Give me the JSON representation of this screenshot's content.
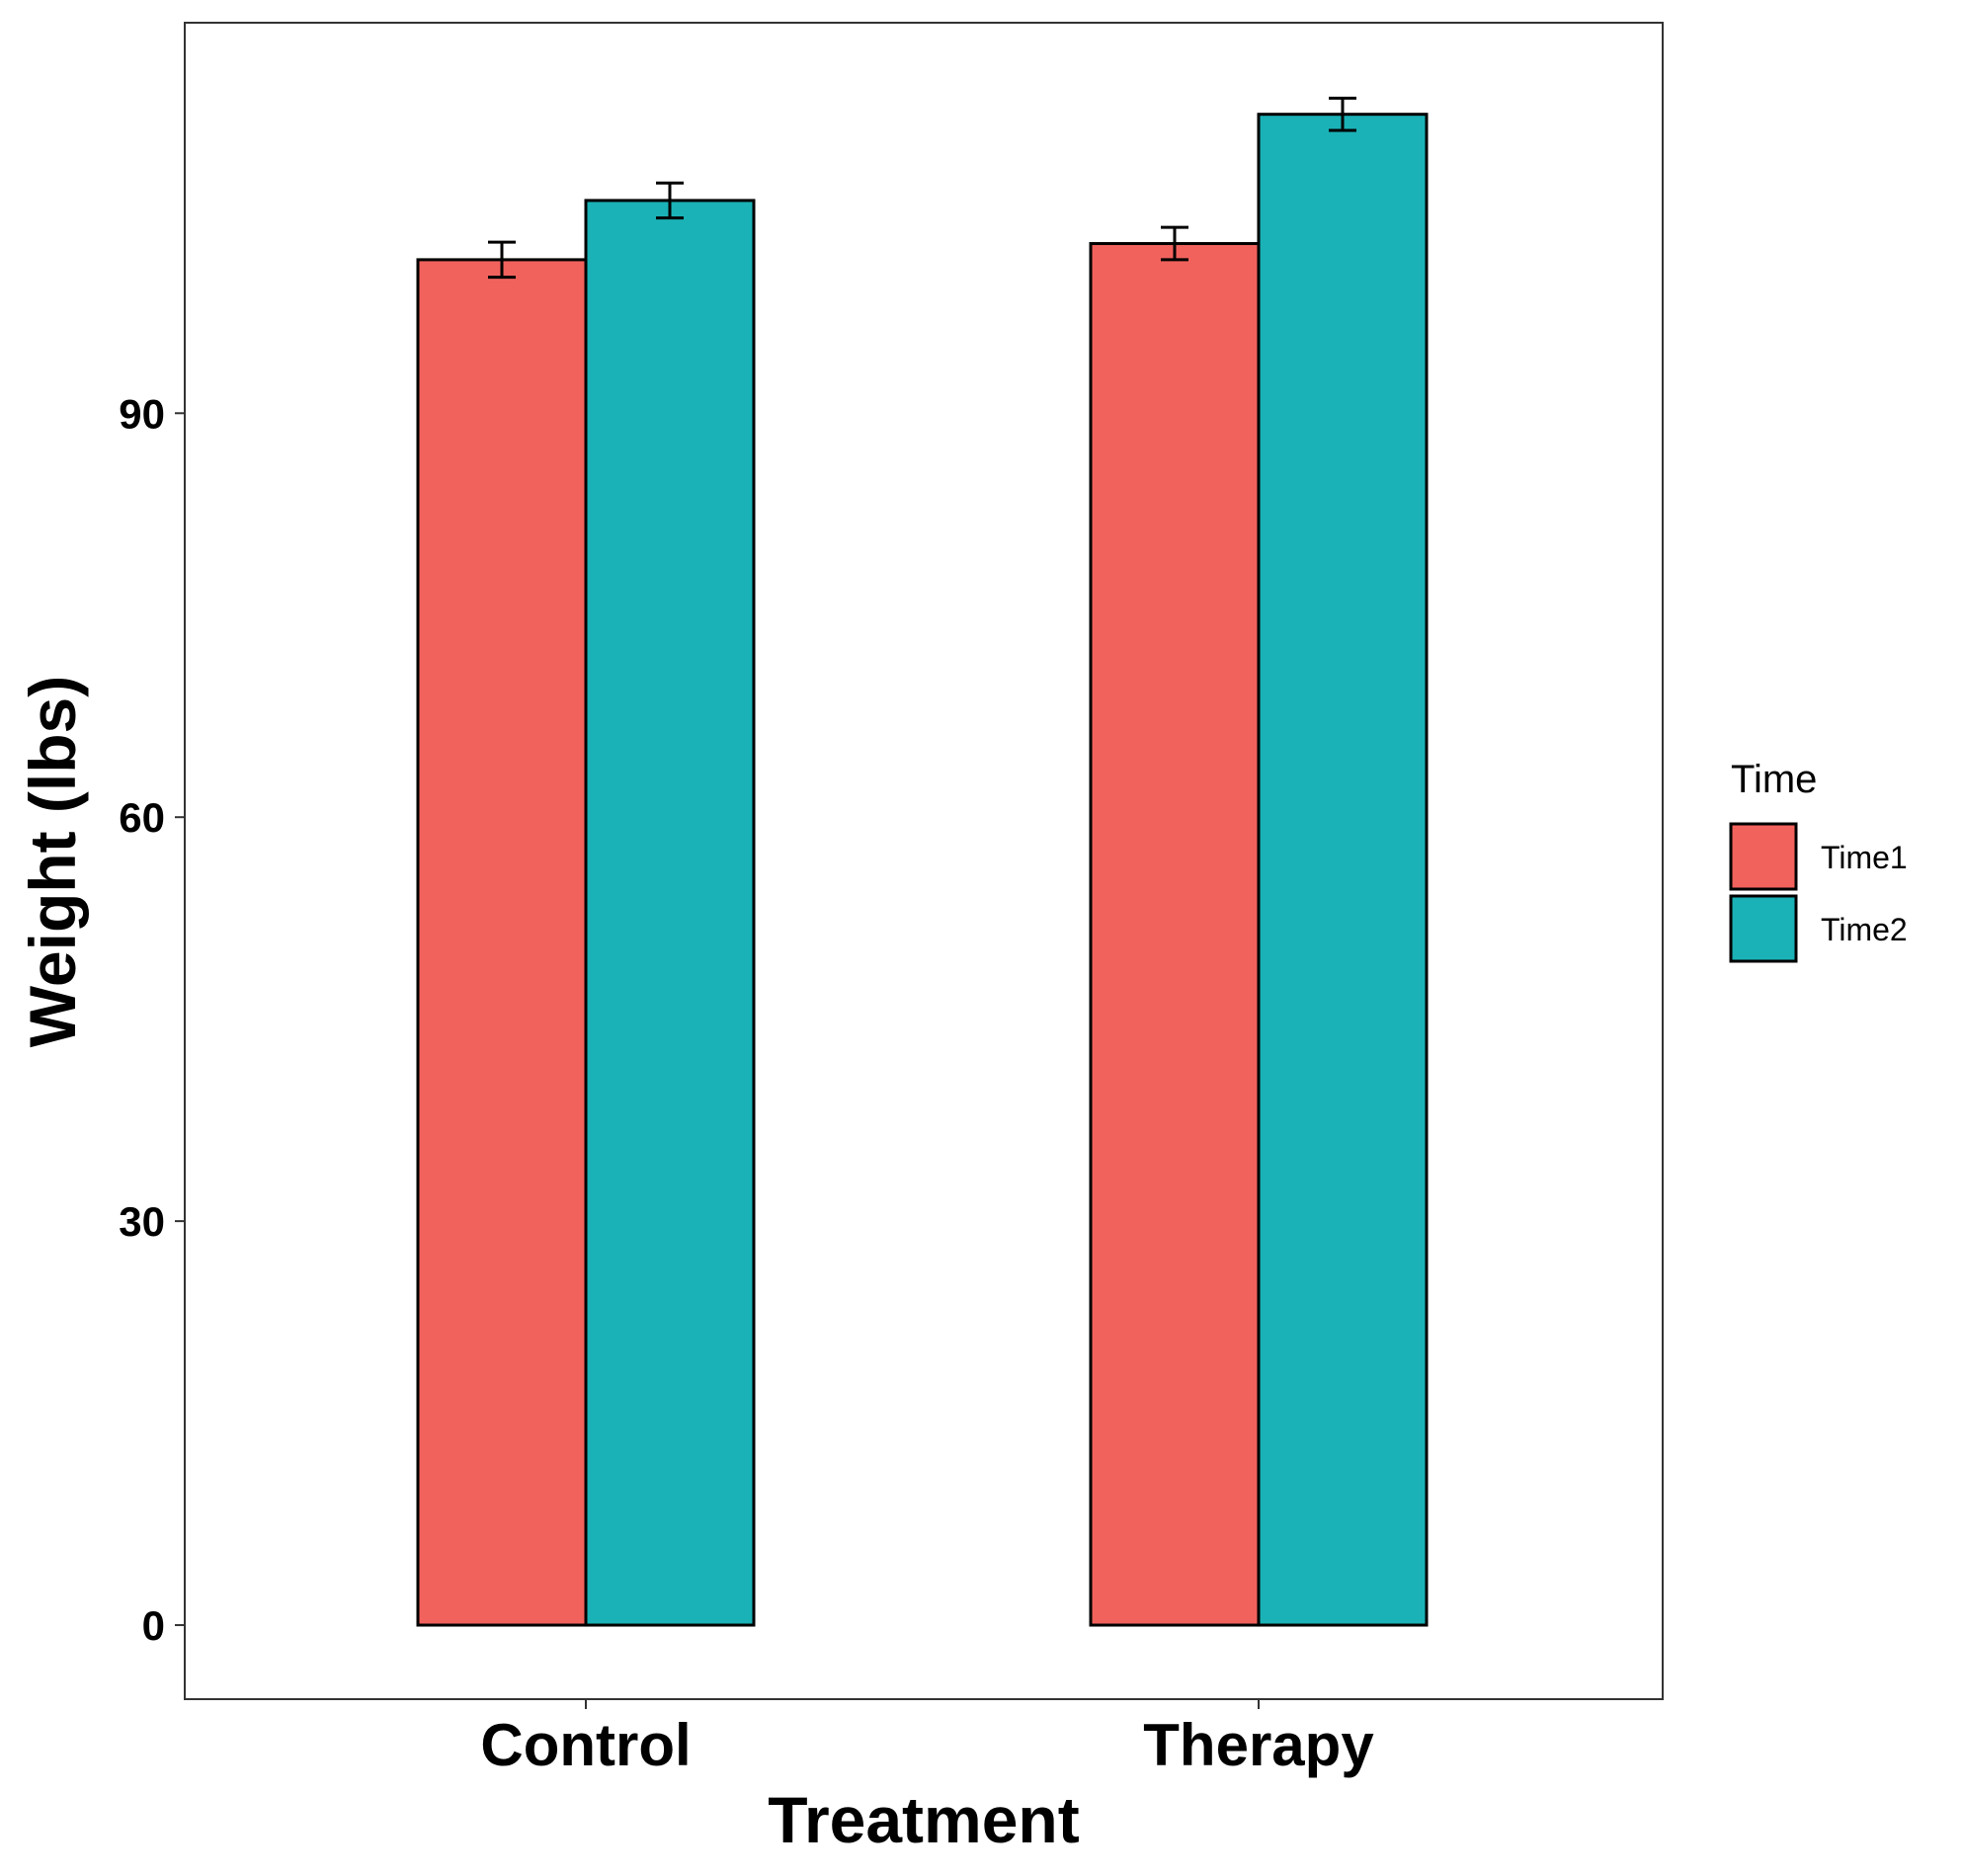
{
  "chart_data": {
    "type": "bar",
    "xlabel": "Treatment",
    "ylabel": "Weight (lbs)",
    "categories": [
      "Control",
      "Therapy"
    ],
    "yticks": [
      0,
      30,
      60,
      90
    ],
    "ylim": [
      -5.5,
      119
    ],
    "grid": false,
    "legend": {
      "title": "Time",
      "placement": "right"
    },
    "series": [
      {
        "name": "Time1",
        "color": "#F2625D",
        "values": [
          101.4,
          102.6
        ],
        "error": [
          1.3,
          1.2
        ]
      },
      {
        "name": "Time2",
        "color": "#1AB2B6",
        "values": [
          105.8,
          112.2
        ],
        "error": [
          1.3,
          1.2
        ]
      }
    ]
  }
}
